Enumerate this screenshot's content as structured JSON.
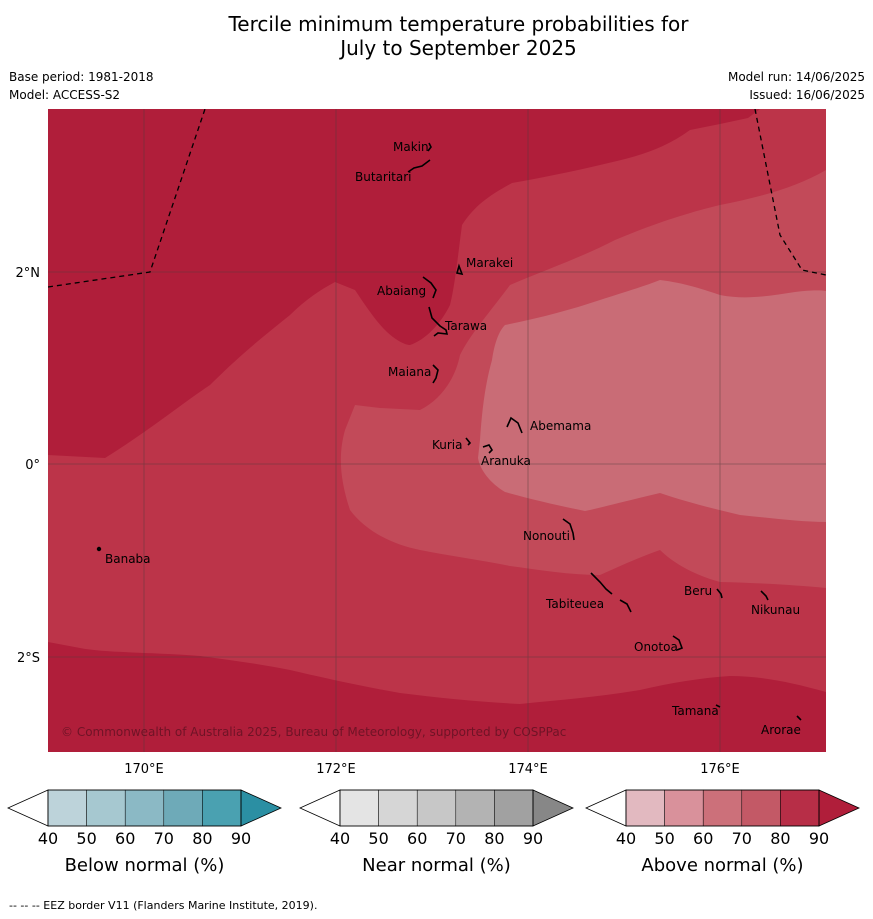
{
  "title_line1": "Tercile minimum temperature probabilities for",
  "title_line2": "July to September 2025",
  "base_period": "Base period: 1981-2018",
  "model": "Model: ACCESS-S2",
  "model_run": "Model run: 14/06/2025",
  "issued": "Issued: 16/06/2025",
  "copyright": "© Commonwealth of Australia 2025, Bureau of Meteorology, supported by COSPPac",
  "footer": "--  --  -- EEZ border V11 (Flanders Marine Institute, 2019).",
  "axes": {
    "lon_ticks": [
      "170°E",
      "172°E",
      "174°E",
      "176°E"
    ],
    "lat_ticks": [
      "2°N",
      "0°",
      "2°S"
    ]
  },
  "places": {
    "makin": "Makin",
    "butaritari": "Butaritari",
    "marakei": "Marakei",
    "abaiang": "Abaiang",
    "tarawa": "Tarawa",
    "maiana": "Maiana",
    "abemama": "Abemama",
    "kuria": "Kuria",
    "aranuka": "Aranuka",
    "banaba": "Banaba",
    "nonouti": "Nonouti",
    "tabiteuea": "Tabiteuea",
    "beru": "Beru",
    "nikunau": "Nikunau",
    "onotoa": "Onotoa",
    "tamana": "Tamana",
    "arorae": "Arorae"
  },
  "colorbars": [
    {
      "title": "Below normal (%)",
      "ticks": [
        "40",
        "50",
        "60",
        "70",
        "80",
        "90"
      ],
      "colors": [
        "#bdd3da",
        "#a6c8d0",
        "#8bb9c5",
        "#6eaab8",
        "#4aa1b1",
        "#2b8fa3"
      ]
    },
    {
      "title": "Near normal (%)",
      "ticks": [
        "40",
        "50",
        "60",
        "70",
        "80",
        "90"
      ],
      "colors": [
        "#e4e4e4",
        "#d6d6d6",
        "#c7c7c7",
        "#b3b3b3",
        "#a1a1a1",
        "#878787"
      ]
    },
    {
      "title": "Above normal (%)",
      "ticks": [
        "40",
        "50",
        "60",
        "70",
        "80",
        "90"
      ],
      "colors": [
        "#e2b9c0",
        "#d9919b",
        "#cc707a",
        "#c35966",
        "#b72e47",
        "#b01e3a"
      ]
    }
  ],
  "fill_colors": {
    "above_90": "#b01e3a",
    "above_80": "#bc3449",
    "above_70": "#c24a59",
    "above_60": "#c96c76"
  }
}
